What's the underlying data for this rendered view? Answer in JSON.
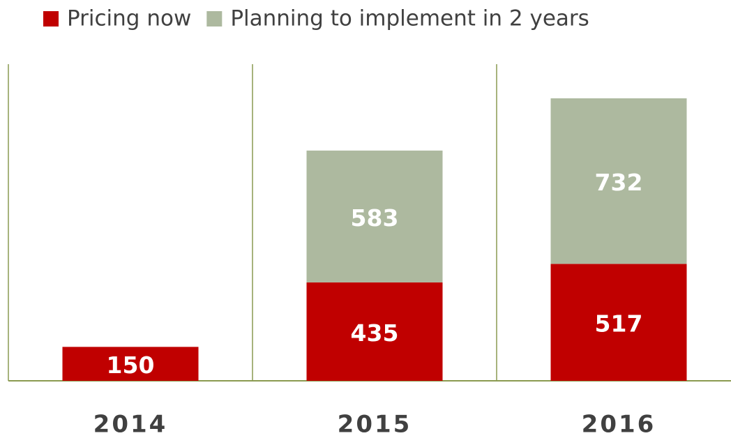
{
  "chart_data": {
    "type": "stacked_bar",
    "categories": [
      "2014",
      "2015",
      "2016"
    ],
    "series": [
      {
        "name": "Pricing now",
        "color": "#c00000",
        "values": [
          150,
          435,
          517
        ]
      },
      {
        "name": "Planning to implement in 2 years",
        "color": "#adb99f",
        "values": [
          null,
          583,
          732
        ]
      }
    ],
    "ylim": [
      0,
      1400
    ]
  }
}
